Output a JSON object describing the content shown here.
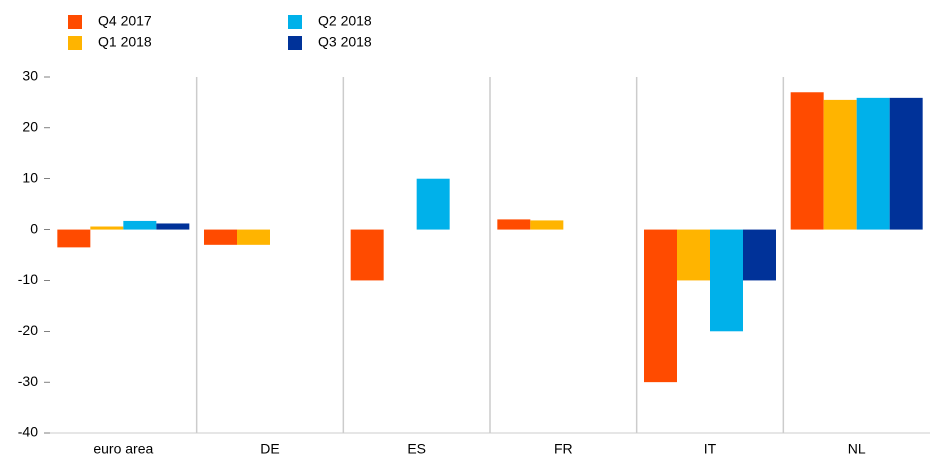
{
  "chart_data": {
    "type": "bar",
    "categories": [
      "euro area",
      "DE",
      "ES",
      "FR",
      "IT",
      "NL"
    ],
    "series": [
      {
        "name": "Q4 2017",
        "color": "#ff4b00",
        "values": [
          -3.5,
          -3,
          -10,
          2,
          -30,
          27
        ]
      },
      {
        "name": "Q1 2018",
        "color": "#ffb400",
        "values": [
          0.6,
          -3,
          0,
          1.8,
          -10,
          25.5
        ]
      },
      {
        "name": "Q2 2018",
        "color": "#00b1ea",
        "values": [
          1.7,
          0,
          10,
          0,
          -20,
          25.9
        ]
      },
      {
        "name": "Q3 2018",
        "color": "#003299",
        "values": [
          1.2,
          0,
          0,
          0,
          -10,
          25.9
        ]
      }
    ],
    "ylim": [
      -40,
      30
    ],
    "yticks": [
      -40,
      -30,
      -20,
      -10,
      0,
      10,
      20,
      30
    ]
  }
}
